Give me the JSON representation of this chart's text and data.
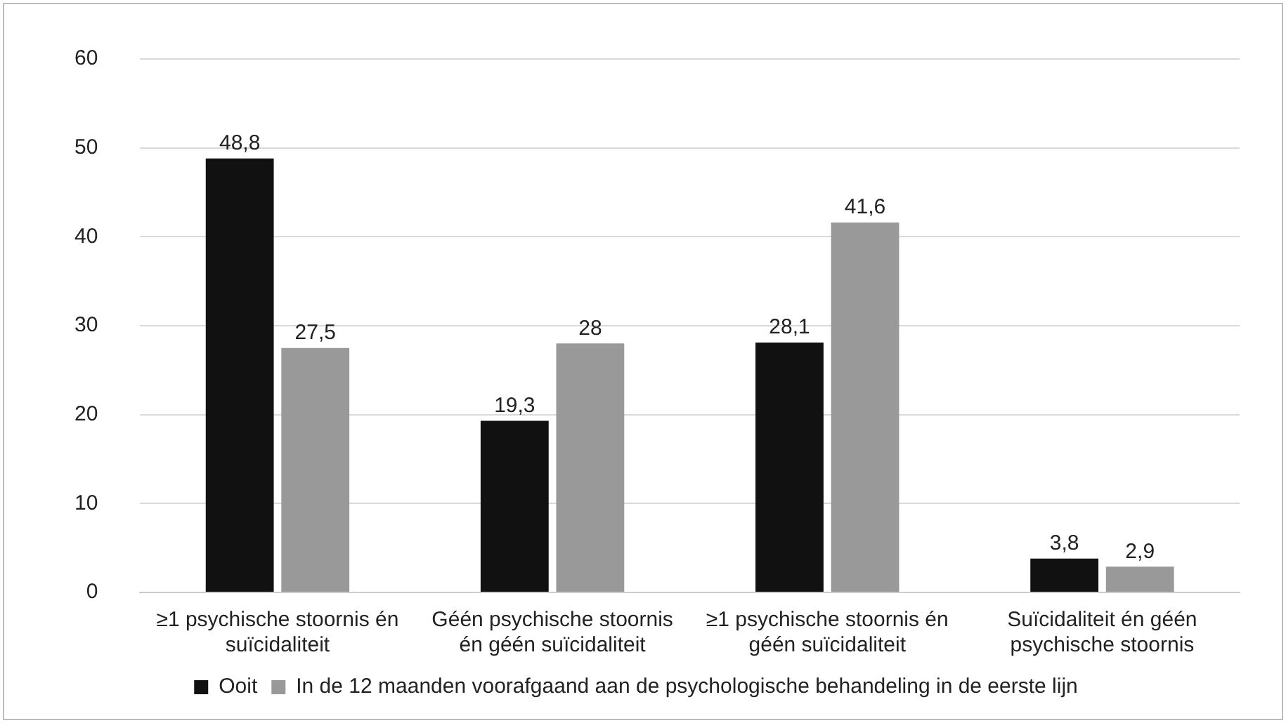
{
  "chart_data": {
    "type": "bar",
    "categories": [
      "≥1 psychische stoornis én suïcidaliteit",
      "Géén psychische stoornis én géén suïcidaliteit",
      "≥1 psychische stoornis én géén suïcidaliteit",
      "Suïcidaliteit én géén psychische stoornis"
    ],
    "series": [
      {
        "name": "Ooit",
        "color": "#111111",
        "values": [
          48.8,
          19.3,
          28.1,
          3.8
        ],
        "value_labels": [
          "48,8",
          "19,3",
          "28,1",
          "3,8"
        ]
      },
      {
        "name": "In de 12 maanden voorafgaand aan de psychologische behandeling in de eerste lijn",
        "color": "#999999",
        "values": [
          27.5,
          28,
          41.6,
          2.9
        ],
        "value_labels": [
          "27,5",
          "28",
          "41,6",
          "2,9"
        ]
      }
    ],
    "ylim": [
      0,
      60
    ],
    "yticks": [
      0,
      10,
      20,
      30,
      40,
      50,
      60
    ],
    "grid": "y",
    "legend": "bottom"
  }
}
